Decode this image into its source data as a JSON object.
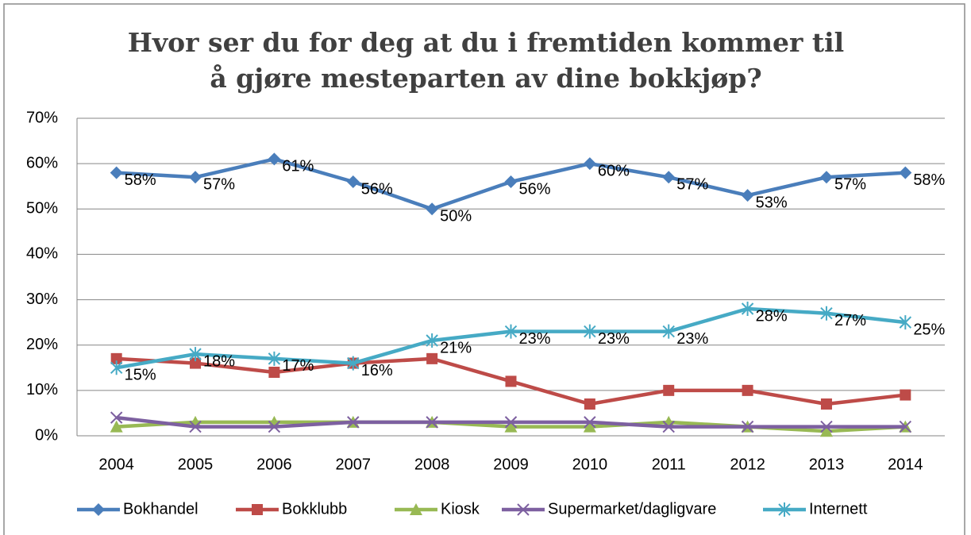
{
  "chart_data": {
    "type": "line",
    "title": [
      "Hvor ser du for deg at du i fremtiden kommer til",
      "å gjøre mesteparten av dine bokkjøp?"
    ],
    "categories": [
      "2004",
      "2005",
      "2006",
      "2007",
      "2008",
      "2009",
      "2010",
      "2011",
      "2012",
      "2013",
      "2014"
    ],
    "series": [
      {
        "name": "Bokhandel",
        "color": "#4a7ebb",
        "marker": "diamond",
        "values": [
          58,
          57,
          61,
          56,
          50,
          56,
          60,
          57,
          53,
          57,
          58
        ],
        "value_labels": [
          "58%",
          "57%",
          "61%",
          "56%",
          "50%",
          "56%",
          "60%",
          "57%",
          "53%",
          "57%",
          "58%"
        ]
      },
      {
        "name": "Bokklubb",
        "color": "#be4b48",
        "marker": "square",
        "values": [
          17,
          16,
          14,
          16,
          17,
          12,
          7,
          10,
          10,
          7,
          9
        ]
      },
      {
        "name": "Kiosk",
        "color": "#98b954",
        "marker": "triangle",
        "values": [
          2,
          3,
          3,
          3,
          3,
          2,
          2,
          3,
          2,
          1,
          2
        ]
      },
      {
        "name": "Supermarket/dagligvare",
        "color": "#7d60a0",
        "marker": "x",
        "values": [
          4,
          2,
          2,
          3,
          3,
          3,
          3,
          2,
          2,
          2,
          2
        ]
      },
      {
        "name": "Internett",
        "color": "#46aac5",
        "marker": "star",
        "values": [
          15,
          18,
          17,
          16,
          21,
          23,
          23,
          23,
          28,
          27,
          25
        ],
        "value_labels": [
          "15%",
          "18%",
          "17%",
          "16%",
          "21%",
          "23%",
          "23%",
          "23%",
          "28%",
          "27%",
          "25%"
        ]
      }
    ],
    "ylim": [
      0,
      70
    ],
    "yticks": [
      {
        "value": 0,
        "label": "0%"
      },
      {
        "value": 10,
        "label": "10%"
      },
      {
        "value": 20,
        "label": "20%"
      },
      {
        "value": 30,
        "label": "30%"
      },
      {
        "value": 40,
        "label": "40%"
      },
      {
        "value": 50,
        "label": "50%"
      },
      {
        "value": 60,
        "label": "60%"
      },
      {
        "value": 70,
        "label": "70%"
      }
    ],
    "grid": true,
    "legend": "bottom"
  }
}
